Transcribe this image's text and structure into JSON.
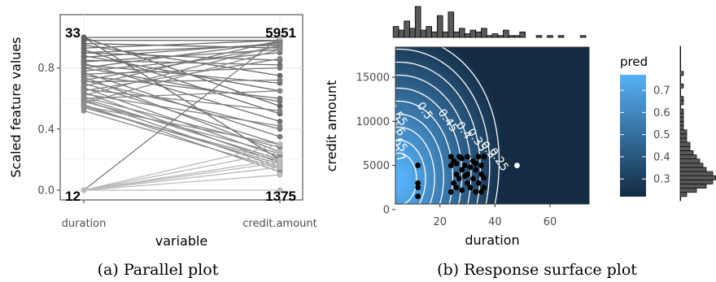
{
  "chart_data": [
    {
      "type": "line",
      "subtype": "parallel-coordinates",
      "title": "",
      "xlabel": "variable",
      "ylabel": "Scaled feature values",
      "categories": [
        "duration",
        "credit.amount"
      ],
      "yticks": [
        "0.0",
        "0.4",
        "0.8"
      ],
      "ylim": [
        0,
        1
      ],
      "grid": true,
      "annotations": [
        {
          "variable": "duration",
          "position": "top",
          "text": "33"
        },
        {
          "variable": "duration",
          "position": "bottom",
          "text": "12"
        },
        {
          "variable": "credit.amount",
          "position": "top",
          "text": "5951"
        },
        {
          "variable": "credit.amount",
          "position": "bottom",
          "text": "1375"
        }
      ],
      "series_color_range": [
        "#bfbfbf",
        "#555555"
      ],
      "lines": [
        [
          1.0,
          1.0
        ],
        [
          1.0,
          0.55
        ],
        [
          1.0,
          0.2
        ],
        [
          0.98,
          0.98
        ],
        [
          0.96,
          0.93
        ],
        [
          0.95,
          0.75
        ],
        [
          0.93,
          0.98
        ],
        [
          0.92,
          0.5
        ],
        [
          0.9,
          0.85
        ],
        [
          0.9,
          0.95
        ],
        [
          0.88,
          0.65
        ],
        [
          0.87,
          0.96
        ],
        [
          0.85,
          0.82
        ],
        [
          0.84,
          0.92
        ],
        [
          0.83,
          0.45
        ],
        [
          0.82,
          0.7
        ],
        [
          0.8,
          0.97
        ],
        [
          0.8,
          0.58
        ],
        [
          0.78,
          0.9
        ],
        [
          0.77,
          0.35
        ],
        [
          0.76,
          0.8
        ],
        [
          0.75,
          0.6
        ],
        [
          0.74,
          0.25
        ],
        [
          0.72,
          0.94
        ],
        [
          0.72,
          0.4
        ],
        [
          0.71,
          0.72
        ],
        [
          0.7,
          0.3
        ],
        [
          0.68,
          0.98
        ],
        [
          0.67,
          0.22
        ],
        [
          0.66,
          0.52
        ],
        [
          0.65,
          0.86
        ],
        [
          0.64,
          0.18
        ],
        [
          0.63,
          0.42
        ],
        [
          0.62,
          0.95
        ],
        [
          0.61,
          0.28
        ],
        [
          0.6,
          0.2
        ],
        [
          0.6,
          0.65
        ],
        [
          0.59,
          0.15
        ],
        [
          0.58,
          0.24
        ],
        [
          0.57,
          0.92
        ],
        [
          0.56,
          0.12
        ],
        [
          0.55,
          0.3
        ],
        [
          0.55,
          0.17
        ],
        [
          0.54,
          0.19
        ],
        [
          0.52,
          0.14
        ],
        [
          0.0,
          1.0
        ],
        [
          0.0,
          0.3
        ],
        [
          0.0,
          0.25
        ],
        [
          0.0,
          0.2
        ],
        [
          0.0,
          0.18
        ],
        [
          0.0,
          0.15
        ],
        [
          0.0,
          0.1
        ],
        [
          0.0,
          0.0
        ]
      ]
    },
    {
      "type": "heatmap",
      "subtype": "response-surface-with-contours",
      "title": "",
      "xlabel": "duration",
      "ylabel": "credit amount",
      "xlim": [
        4,
        73
      ],
      "ylim": [
        0,
        18500
      ],
      "xticks": [
        20,
        40,
        60
      ],
      "yticks": [
        0,
        5000,
        10000,
        15000
      ],
      "legend": {
        "title": "pred",
        "placement": "right",
        "ticks": [
          0.3,
          0.4,
          0.5,
          0.6,
          0.7
        ],
        "range": [
          0.22,
          0.77
        ],
        "color_low": "#132b43",
        "color_high": "#56b1f7"
      },
      "contour_labels": [
        "0.7",
        "0.65",
        "0.6",
        "0.55",
        "0.5",
        "0.45",
        "0.4",
        "0.35",
        "0.3",
        "0.25"
      ],
      "points": [
        [
          12,
          1500
        ],
        [
          12,
          2500
        ],
        [
          12,
          3000
        ],
        [
          12,
          5000
        ],
        [
          48,
          5000
        ],
        [
          24,
          2000
        ],
        [
          25,
          3000
        ],
        [
          26,
          4000
        ],
        [
          24,
          5000
        ],
        [
          24,
          6000
        ],
        [
          25,
          5500
        ],
        [
          26,
          2500
        ],
        [
          27,
          3500
        ],
        [
          27,
          6000
        ],
        [
          28,
          4500
        ],
        [
          28,
          2200
        ],
        [
          29,
          5000
        ],
        [
          30,
          3000
        ],
        [
          30,
          4000
        ],
        [
          30,
          6000
        ],
        [
          31,
          2500
        ],
        [
          32,
          3500
        ],
        [
          32,
          5500
        ],
        [
          33,
          4500
        ],
        [
          33,
          2000
        ],
        [
          34,
          6000
        ],
        [
          34,
          3000
        ],
        [
          35,
          5000
        ],
        [
          35,
          4000
        ],
        [
          36,
          2500
        ],
        [
          36,
          6000
        ],
        [
          28,
          5800
        ],
        [
          31,
          4800
        ],
        [
          26,
          5200
        ],
        [
          35,
          2000
        ],
        [
          36,
          3600
        ],
        [
          29,
          3800
        ],
        [
          33,
          5200
        ]
      ],
      "top_histogram": {
        "bins": [
          4,
          6,
          8,
          10,
          12,
          14,
          16,
          18,
          20,
          22,
          24,
          26,
          28,
          30,
          32,
          34,
          36,
          38,
          40,
          42,
          44,
          46,
          48,
          50,
          52,
          54,
          56,
          58,
          60,
          62,
          64,
          66,
          68,
          70,
          72
        ],
        "counts": [
          6,
          4,
          9,
          5,
          17,
          4,
          6,
          3,
          12,
          3,
          14,
          3,
          5,
          2,
          4,
          3,
          5,
          1,
          2,
          1,
          4,
          1,
          1,
          3,
          0,
          0,
          1,
          0,
          1,
          0,
          1,
          0,
          0,
          0,
          1
        ]
      },
      "right_histogram": {
        "bins_from_ylim": true,
        "counts": [
          0,
          2,
          5,
          8,
          10,
          11,
          10,
          8,
          7,
          6,
          5,
          4,
          3,
          3,
          2,
          2,
          2,
          1,
          1,
          1,
          1,
          1,
          0,
          1,
          1,
          0,
          0,
          1,
          0,
          0,
          1,
          0,
          0,
          0,
          0,
          0,
          0
        ]
      }
    }
  ],
  "captions": [
    "(a) Parallel plot",
    "(b) Response surface plot"
  ]
}
